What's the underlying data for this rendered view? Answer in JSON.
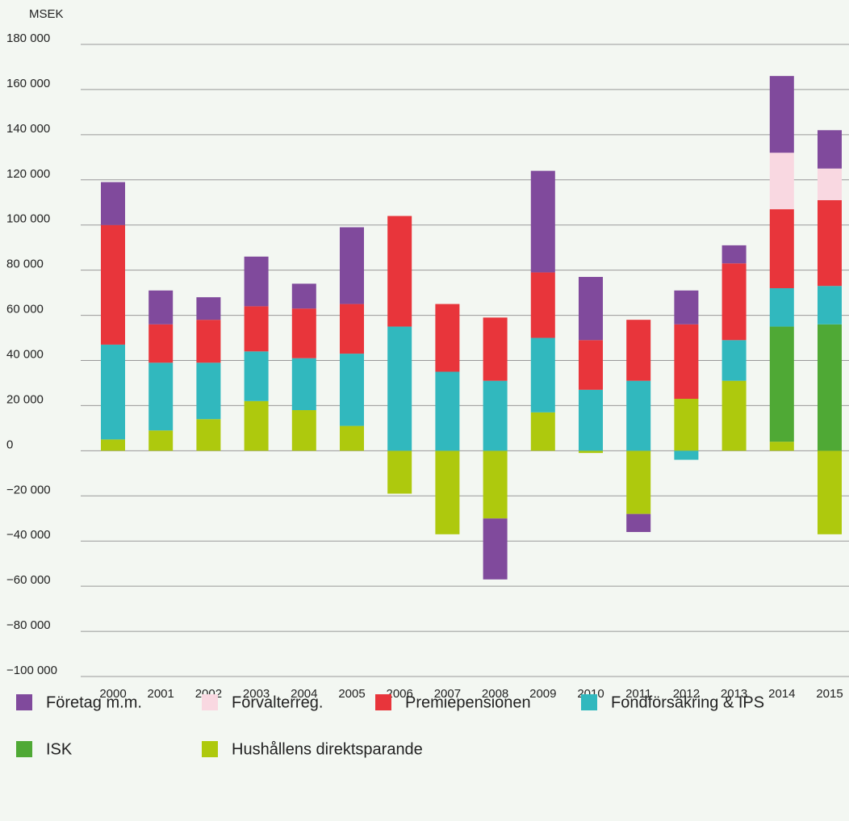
{
  "chart_data": {
    "type": "stacked_bar",
    "y_label": "MSEK",
    "categories": [
      "2000",
      "2001",
      "2002",
      "2003",
      "2004",
      "2005",
      "2006",
      "2007",
      "2008",
      "2009",
      "2010",
      "2011",
      "2012",
      "2013",
      "2014",
      "2015"
    ],
    "series": [
      {
        "name": "Företag m.m.",
        "color": "#804a9c",
        "values": [
          19000,
          15000,
          10000,
          22000,
          11000,
          34000,
          null,
          null,
          -27000,
          45000,
          28000,
          -8000,
          15000,
          8000,
          34000,
          17000
        ]
      },
      {
        "name": "Förvalterreg.",
        "color": "#f9d8e1",
        "values": [
          null,
          null,
          null,
          null,
          null,
          null,
          null,
          null,
          null,
          null,
          null,
          null,
          null,
          null,
          25000,
          14000
        ]
      },
      {
        "name": "Premiepensionen",
        "color": "#e8353b",
        "values": [
          53000,
          17000,
          19000,
          20000,
          22000,
          22000,
          49000,
          30000,
          28000,
          29000,
          22000,
          27000,
          33000,
          34000,
          35000,
          38000
        ]
      },
      {
        "name": "Fondförsäkring & IPS",
        "color": "#31b8be",
        "values": [
          42000,
          30000,
          25000,
          22000,
          23000,
          32000,
          55000,
          35000,
          31000,
          33000,
          27000,
          31000,
          -4000,
          18000,
          17000,
          17000
        ]
      },
      {
        "name": "ISK",
        "color": "#4fa935",
        "values": [
          null,
          null,
          null,
          null,
          null,
          null,
          null,
          null,
          null,
          null,
          null,
          null,
          null,
          null,
          51000,
          56000
        ]
      },
      {
        "name": "Hushållens direktsparande",
        "color": "#aec90d",
        "values": [
          5000,
          9000,
          14000,
          22000,
          18000,
          11000,
          -19000,
          -37000,
          -30000,
          17000,
          -1000,
          -28000,
          23000,
          31000,
          4000,
          -37000
        ]
      }
    ],
    "ylim": [
      -100000,
      180000
    ],
    "yticks": [
      {
        "value": -100000,
        "label": "−100 000"
      },
      {
        "value": -80000,
        "label": "−80 000"
      },
      {
        "value": -60000,
        "label": "−60 000"
      },
      {
        "value": -40000,
        "label": "−40 000"
      },
      {
        "value": -20000,
        "label": "−20 000"
      },
      0,
      {
        "value": 20000,
        "label": "20 000"
      },
      {
        "value": 40000,
        "label": "40 000"
      },
      {
        "value": 60000,
        "label": "60 000"
      },
      {
        "value": 80000,
        "label": "80 000"
      },
      {
        "value": 100000,
        "label": "100 000"
      },
      {
        "value": 120000,
        "label": "120 000"
      },
      {
        "value": 140000,
        "label": "140 000"
      },
      {
        "value": 160000,
        "label": "160 000"
      },
      {
        "value": 180000,
        "label": "180 000"
      }
    ],
    "grid": true
  }
}
